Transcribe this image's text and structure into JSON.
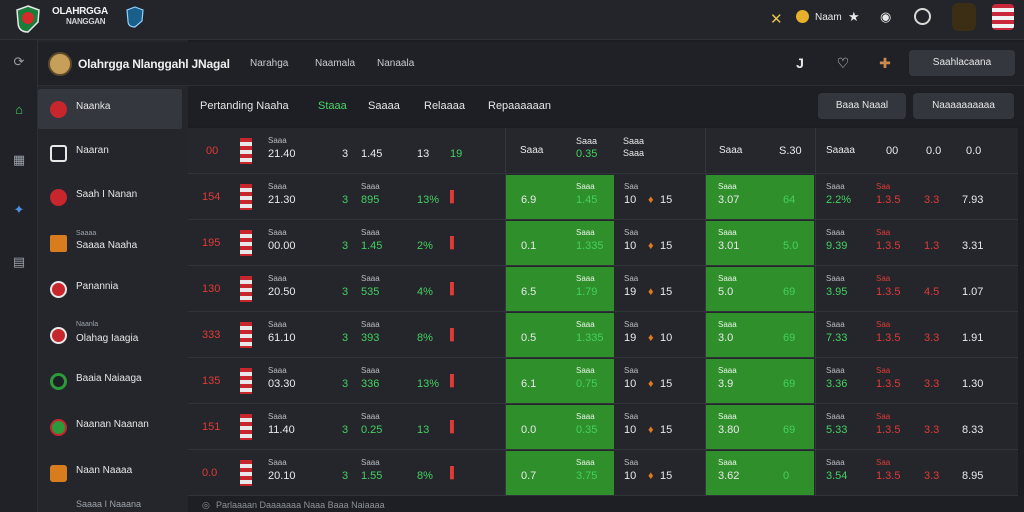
{
  "app": {
    "brand_title": "OLAHRGGA",
    "brand_sub": "NANGGAN",
    "user_label": "Naam",
    "colors": {
      "accent_green": "#44d060",
      "accent_red": "#e03a36",
      "green_block": "#2f8f2b",
      "bg": "#1b1d22"
    }
  },
  "topbar_icons": [
    "close-icon",
    "coin-icon",
    "star-icon",
    "bell-icon",
    "clock-icon",
    "avatar-icon",
    "flag-icon"
  ],
  "crumb": {
    "title": "Olahrgga Nlanggahl JNagal",
    "tabs": [
      "Narahga",
      "Naamala",
      "Nanaala"
    ],
    "icons": [
      "brand-icon",
      "heart-icon",
      "puzzle-icon"
    ],
    "button": "Saahlacaana"
  },
  "sidebar": {
    "items": [
      {
        "label": "Naanka",
        "sublabel": "",
        "icon_color": "#c8262d",
        "active": true
      },
      {
        "label": "Naaran",
        "sublabel": "",
        "icon_color": "#1d1f24",
        "active": false
      },
      {
        "label": "Saah I Nanan",
        "sublabel": "",
        "icon_color": "#c8262d",
        "active": false
      },
      {
        "label": "Saaaa Naaha",
        "sublabel": "Saaaa",
        "icon_color": "#d87c1e",
        "active": false
      },
      {
        "label": "Panannia",
        "sublabel": "",
        "icon_color": "#c8262d",
        "active": false
      },
      {
        "label": "Olahag Iaagia",
        "sublabel": "Naanla",
        "icon_color": "#c8262d",
        "active": false
      },
      {
        "label": "Baaia Naiaaga",
        "sublabel": "",
        "icon_color": "#2a9a3a",
        "active": false
      },
      {
        "label": "Naanan Naanan",
        "sublabel": "",
        "icon_color": "#2a9a3a",
        "active": false
      },
      {
        "label": "Naan Naaaa",
        "sublabel": "",
        "icon_color": "#d87c1e",
        "active": false
      },
      {
        "label": "Saaaa I Naaana",
        "sublabel": "",
        "icon_color": "#c8262d",
        "active": false
      }
    ]
  },
  "tabs": {
    "items": [
      "Pertanding Naaha",
      "Staaa",
      "Saaaa",
      "Relaaaa",
      "Repaaaaaan"
    ],
    "active_index": 1,
    "buttons": [
      "Baaa Naaal",
      "Naaaaaaaaaa"
    ]
  },
  "table": {
    "header": {
      "num": "00",
      "date": "Saaa",
      "time": "21.40",
      "s": "3",
      "score": "1.45",
      "extra": "13",
      "extra2": "19",
      "c1": "Saaa",
      "c2": "Saaa",
      "c2v": "0.35",
      "c3": "Saaa",
      "c3v": "Saaa",
      "c4": "Saaa",
      "c4v": "S.30",
      "c5": "Saaaa",
      "c6": "00",
      "c7": "0.0",
      "c8": "0.0"
    },
    "rows": [
      {
        "num": "154",
        "time": "21.30",
        "s": "3",
        "score": "895",
        "extra": "13%",
        "g1": "6.9",
        "g2": "1.45",
        "m1": "10",
        "m2": "15",
        "g3": "3.07",
        "g4": "64",
        "p1": "2.2%",
        "p2": "1.3.5",
        "p3": "3.3",
        "p4": "7.93"
      },
      {
        "num": "195",
        "time": "00.00",
        "s": "3",
        "score": "1.45",
        "extra": "2%",
        "g1": "0.1",
        "g2": "1.335",
        "m1": "10",
        "m2": "15",
        "g3": "3.01",
        "g4": "5.0",
        "p1": "9.39",
        "p2": "1.3.5",
        "p3": "1.3",
        "p4": "3.31"
      },
      {
        "num": "130",
        "time": "20.50",
        "s": "3",
        "score": "535",
        "extra": "4%",
        "g1": "6.5",
        "g2": "1.79",
        "m1": "19",
        "m2": "15",
        "g3": "5.0",
        "g4": "69",
        "p1": "3.95",
        "p2": "1.3.5",
        "p3": "4.5",
        "p4": "1.07"
      },
      {
        "num": "333",
        "time": "61.10",
        "s": "3",
        "score": "393",
        "extra": "8%",
        "g1": "0.5",
        "g2": "1.335",
        "m1": "19",
        "m2": "10",
        "g3": "3.0",
        "g4": "69",
        "p1": "7.33",
        "p2": "1.3.5",
        "p3": "3.3",
        "p4": "1.91"
      },
      {
        "num": "135",
        "time": "03.30",
        "s": "3",
        "score": "336",
        "extra": "13%",
        "g1": "6.1",
        "g2": "0.75",
        "m1": "10",
        "m2": "15",
        "g3": "3.9",
        "g4": "69",
        "p1": "3.36",
        "p2": "1.3.5",
        "p3": "3.3",
        "p4": "1.30"
      },
      {
        "num": "151",
        "time": "11.40",
        "s": "3",
        "score": "0.25",
        "extra": "13",
        "g1": "0.0",
        "g2": "0.35",
        "m1": "10",
        "m2": "15",
        "g3": "3.80",
        "g4": "69",
        "p1": "5.33",
        "p2": "1.3.5",
        "p3": "3.3",
        "p4": "8.33"
      },
      {
        "num": "0.0",
        "time": "20.10",
        "s": "3",
        "score": "1.55",
        "extra": "8%",
        "g1": "0.7",
        "g2": "3.75",
        "m1": "10",
        "m2": "15",
        "g3": "3.62",
        "g4": "0",
        "p1": "3.54",
        "p2": "1.3.5",
        "p3": "3.3",
        "p4": "8.95"
      }
    ]
  },
  "footer": {
    "text": "Parlaaaan Daaaaaaa Naaa Baaa Naiaaaa"
  }
}
